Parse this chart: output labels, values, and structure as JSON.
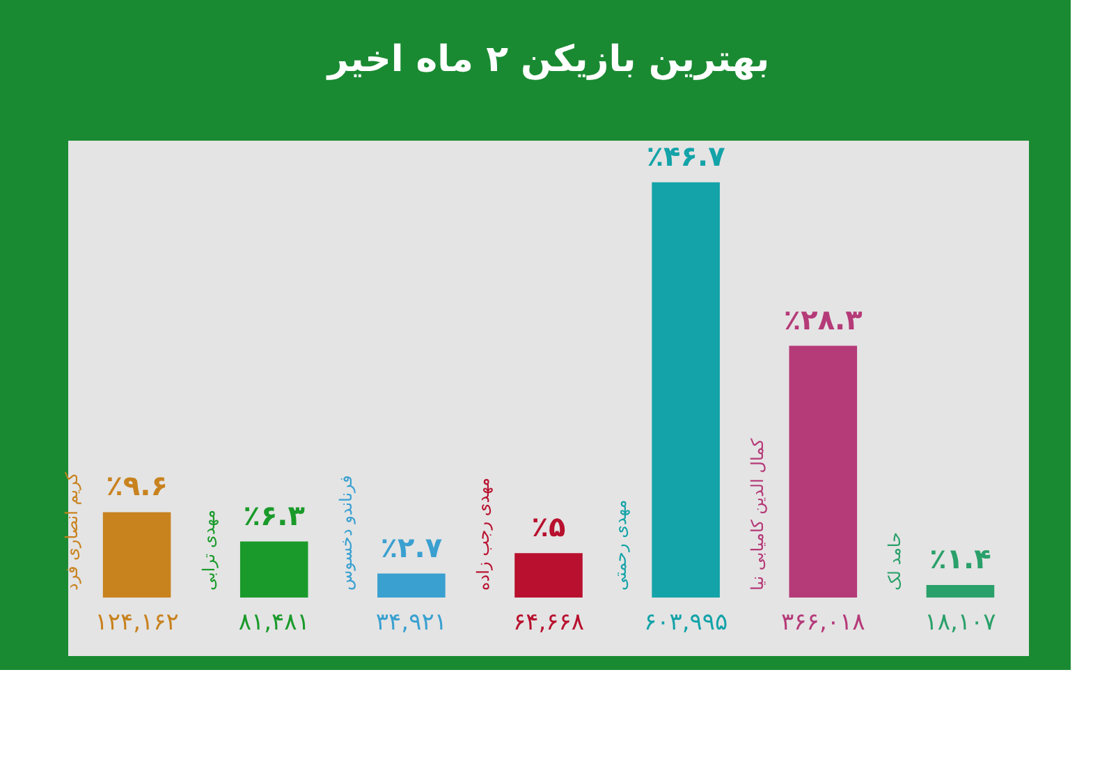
{
  "chart_data": {
    "type": "bar",
    "title": "بهترین بازیکن ۲ ماه اخیر",
    "categories": [
      "کریم انصاری فرد",
      "مهدی ترابی",
      "فرناندو دخسوس",
      "مهدی رجب زاده",
      "مهدی رحمتی",
      "کمال الدین کامیابی نیا",
      "حامد لک"
    ],
    "values": [
      9.6,
      6.3,
      2.7,
      5,
      46.7,
      28.3,
      1.4
    ],
    "colors": [
      "#c8821e",
      "#1a9a2a",
      "#3aa0d0",
      "#b8102e",
      "#13a3a8",
      "#b53a78",
      "#2aa06a"
    ],
    "value_labels": [
      "٪۹.۶",
      "٪۶.۳",
      "٪۲.۷",
      "٪۵",
      "٪۴۶.۷",
      "٪۲۸.۳",
      "٪۱.۴"
    ],
    "annotations": [
      "۱۲۴,۱۶۲",
      "۸۱,۴۸۱",
      "۳۴,۹۲۱",
      "۶۴,۶۶۸",
      "۶۰۳,۹۹۵",
      "۳۶۶,۰۱۸",
      "۱۸,۱۰۷"
    ],
    "tick_labels": false,
    "grid": false
  }
}
